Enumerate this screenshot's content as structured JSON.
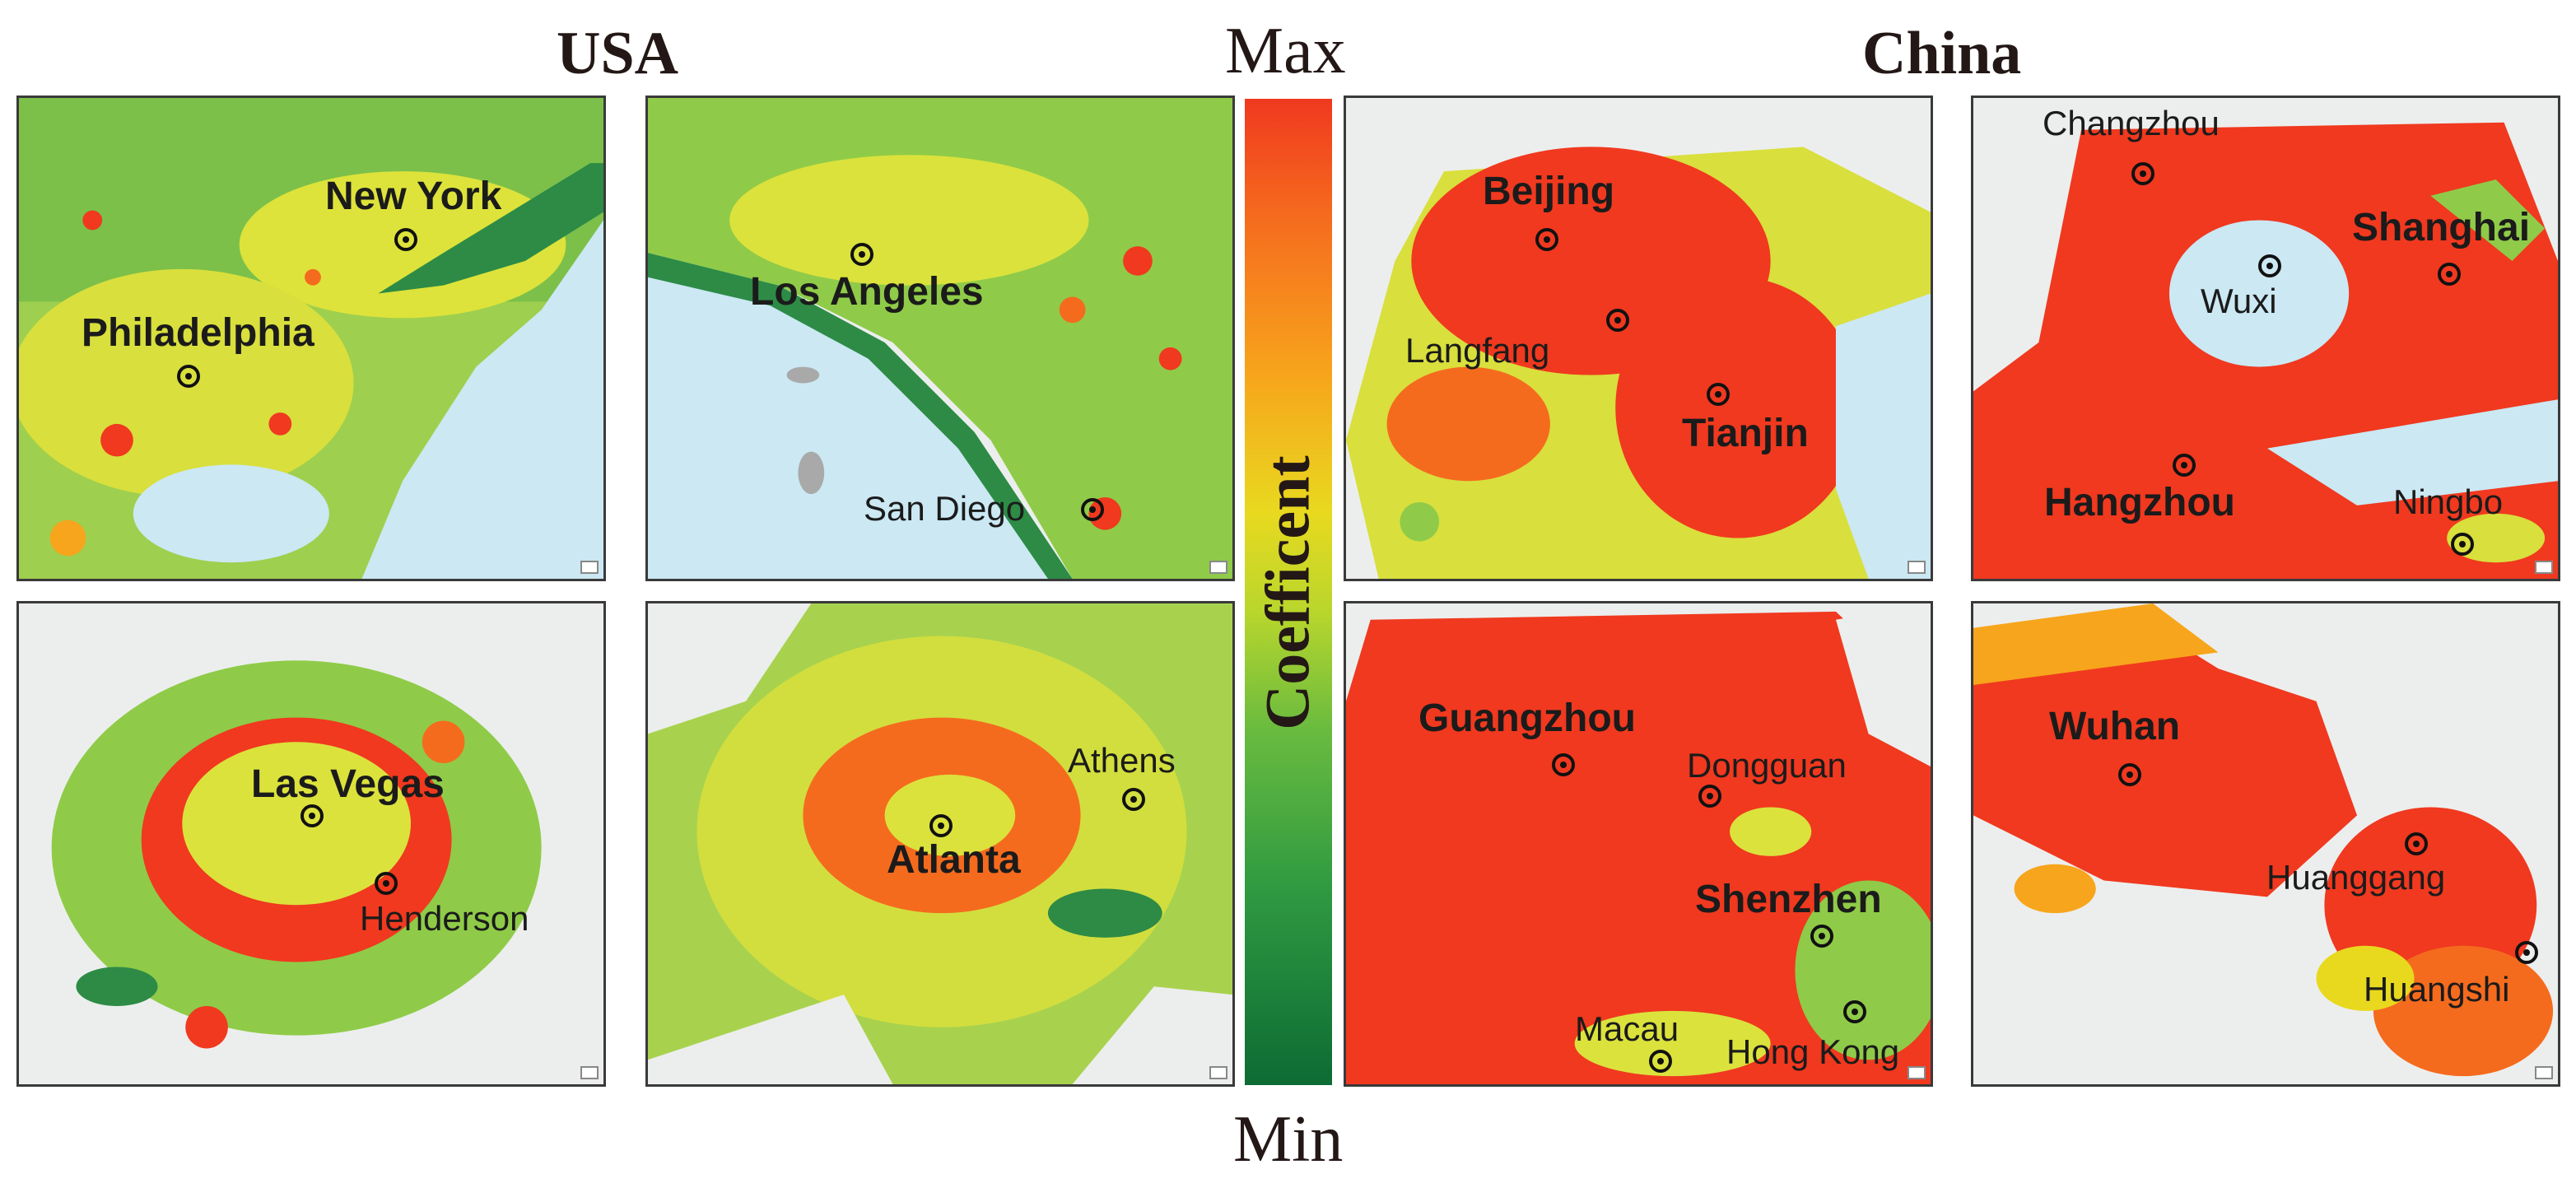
{
  "headings": {
    "left_region": "USA",
    "right_region": "China"
  },
  "legend": {
    "max_label": "Max",
    "min_label": "Min",
    "axis_label": "Coefficent",
    "colors": [
      "#f0391f",
      "#f7a51c",
      "#e8d91f",
      "#69bb3f",
      "#0d6b34"
    ]
  },
  "panels": [
    {
      "cities": [
        {
          "name": "New York",
          "major": true
        },
        {
          "name": "Philadelphia",
          "major": true
        }
      ]
    },
    {
      "cities": [
        {
          "name": "Los Angeles",
          "major": true
        },
        {
          "name": "San Diego",
          "major": false
        }
      ]
    },
    {
      "cities": [
        {
          "name": "Beijing",
          "major": true
        },
        {
          "name": "Langfang",
          "major": false
        },
        {
          "name": "Tianjin",
          "major": true
        }
      ]
    },
    {
      "cities": [
        {
          "name": "Changzhou",
          "major": false
        },
        {
          "name": "Wuxi",
          "major": false
        },
        {
          "name": "Shanghai",
          "major": true
        },
        {
          "name": "Hangzhou",
          "major": true
        },
        {
          "name": "Ningbo",
          "major": false
        }
      ]
    },
    {
      "cities": [
        {
          "name": "Las Vegas",
          "major": true
        },
        {
          "name": "Henderson",
          "major": false
        }
      ]
    },
    {
      "cities": [
        {
          "name": "Athens",
          "major": false
        },
        {
          "name": "Atlanta",
          "major": true
        }
      ]
    },
    {
      "cities": [
        {
          "name": "Guangzhou",
          "major": true
        },
        {
          "name": "Dongguan",
          "major": false
        },
        {
          "name": "Shenzhen",
          "major": true
        },
        {
          "name": "Macau",
          "major": false
        },
        {
          "name": "Hong Kong",
          "major": false
        }
      ]
    },
    {
      "cities": [
        {
          "name": "Wuhan",
          "major": true
        },
        {
          "name": "Huanggang",
          "major": false
        },
        {
          "name": "Huangshi",
          "major": false
        }
      ]
    }
  ]
}
